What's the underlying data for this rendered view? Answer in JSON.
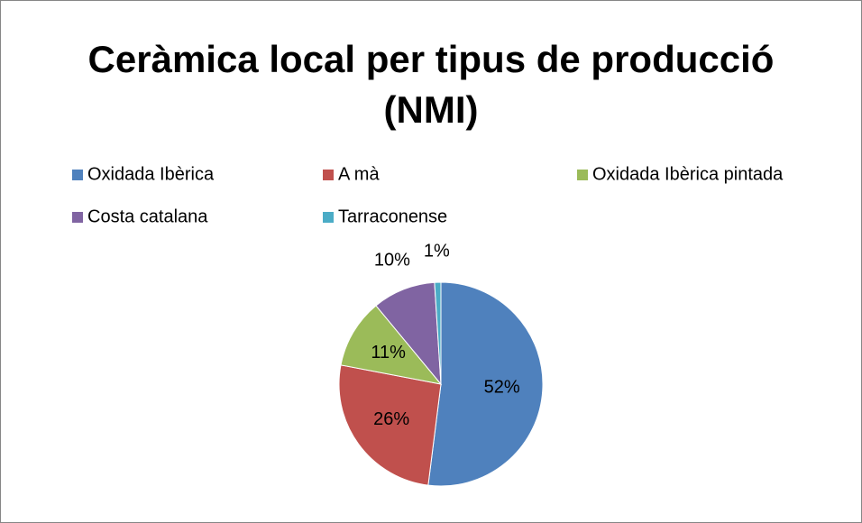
{
  "chart_data": {
    "type": "pie",
    "title": "Ceràmica local per tipus de producció (NMI)",
    "categories": [
      "Oxidada Ibèrica",
      "A mà",
      "Oxidada Ibèrica pintada",
      "Costa catalana",
      "Tarraconense"
    ],
    "values": [
      52,
      26,
      11,
      10,
      1
    ],
    "value_labels": [
      "52%",
      "26%",
      "11%",
      "10%",
      "1%"
    ],
    "colors": [
      "#4f81bd",
      "#c0504d",
      "#9bbb59",
      "#8064a2",
      "#4bacc6"
    ],
    "legend": "top"
  }
}
